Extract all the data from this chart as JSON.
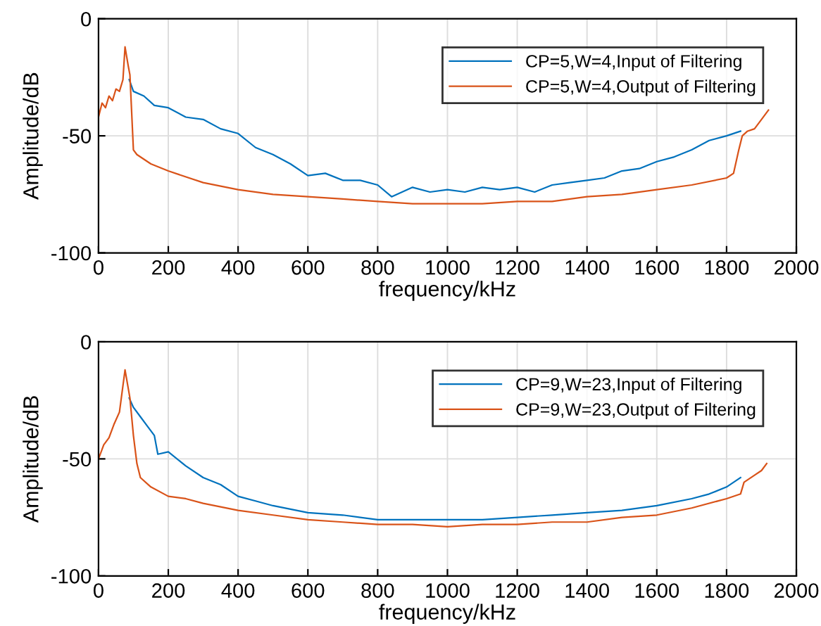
{
  "chart_data": [
    {
      "type": "line",
      "xlabel": "frequency/kHz",
      "ylabel": "Amplitude/dB",
      "xlim": [
        0,
        2000
      ],
      "ylim": [
        -100,
        0
      ],
      "xticks": [
        0,
        200,
        400,
        600,
        800,
        1000,
        1200,
        1400,
        1600,
        1800,
        2000
      ],
      "yticks": [
        -100,
        -50,
        0
      ],
      "grid": true,
      "legend": "top right",
      "line_style": "solid",
      "series": [
        {
          "name": "CP=5,W=4,Input of Filtering",
          "color": "#0072bd",
          "x": [
            88,
            100,
            130,
            160,
            200,
            250,
            300,
            350,
            400,
            450,
            500,
            550,
            600,
            650,
            700,
            750,
            800,
            840,
            900,
            950,
            1000,
            1050,
            1100,
            1150,
            1200,
            1250,
            1300,
            1350,
            1400,
            1450,
            1500,
            1550,
            1600,
            1650,
            1700,
            1750,
            1800,
            1840
          ],
          "values": [
            -26,
            -31,
            -33,
            -37,
            -38,
            -42,
            -43,
            -47,
            -49,
            -55,
            -58,
            -62,
            -67,
            -66,
            -69,
            -69,
            -71,
            -76,
            -72,
            -74,
            -73,
            -74,
            -72,
            -73,
            -72,
            -74,
            -71,
            -70,
            -69,
            -68,
            -65,
            -64,
            -61,
            -59,
            -56,
            -52,
            -50,
            -48
          ]
        },
        {
          "name": "CP=5,W=4,Output of Filtering",
          "color": "#d95319",
          "x": [
            0,
            10,
            20,
            30,
            40,
            50,
            60,
            70,
            76,
            85,
            90,
            100,
            110,
            150,
            200,
            300,
            400,
            500,
            600,
            700,
            800,
            900,
            1000,
            1100,
            1200,
            1300,
            1400,
            1500,
            1600,
            1700,
            1800,
            1820,
            1835,
            1845,
            1860,
            1880,
            1900,
            1920
          ],
          "values": [
            -42,
            -36,
            -38,
            -33,
            -35,
            -30,
            -31,
            -26,
            -12,
            -20,
            -24,
            -56,
            -58,
            -62,
            -65,
            -70,
            -73,
            -75,
            -76,
            -77,
            -78,
            -79,
            -79,
            -79,
            -78,
            -78,
            -76,
            -75,
            -73,
            -71,
            -68,
            -66,
            -56,
            -50,
            -48,
            -47,
            -43,
            -39
          ]
        }
      ]
    },
    {
      "type": "line",
      "xlabel": "frequency/kHz",
      "ylabel": "Amplitude/dB",
      "xlim": [
        0,
        2000
      ],
      "ylim": [
        -100,
        0
      ],
      "xticks": [
        0,
        200,
        400,
        600,
        800,
        1000,
        1200,
        1400,
        1600,
        1800,
        2000
      ],
      "yticks": [
        -100,
        -50,
        0
      ],
      "grid": true,
      "legend": "top right",
      "line_style": "solid",
      "series": [
        {
          "name": "CP=9,W=23,Input of Filtering",
          "color": "#0072bd",
          "x": [
            88,
            100,
            120,
            140,
            160,
            170,
            200,
            250,
            300,
            350,
            400,
            450,
            500,
            600,
            700,
            800,
            900,
            1000,
            1100,
            1200,
            1300,
            1400,
            1500,
            1600,
            1700,
            1750,
            1800,
            1840
          ],
          "values": [
            -24,
            -28,
            -32,
            -36,
            -40,
            -48,
            -47,
            -53,
            -58,
            -61,
            -66,
            -68,
            -70,
            -73,
            -74,
            -76,
            -76,
            -76,
            -76,
            -75,
            -74,
            -73,
            -72,
            -70,
            -67,
            -65,
            -62,
            -58
          ]
        },
        {
          "name": "CP=9,W=23,Output of Filtering",
          "color": "#d95319",
          "x": [
            0,
            15,
            30,
            45,
            60,
            76,
            90,
            100,
            110,
            120,
            150,
            200,
            250,
            300,
            400,
            500,
            600,
            700,
            800,
            900,
            1000,
            1100,
            1200,
            1300,
            1400,
            1500,
            1600,
            1700,
            1800,
            1840,
            1850,
            1880,
            1900,
            1915
          ],
          "values": [
            -50,
            -44,
            -41,
            -35,
            -30,
            -12,
            -24,
            -40,
            -52,
            -58,
            -62,
            -66,
            -67,
            -69,
            -72,
            -74,
            -76,
            -77,
            -78,
            -78,
            -79,
            -78,
            -78,
            -77,
            -77,
            -75,
            -74,
            -71,
            -67,
            -65,
            -60,
            -57,
            -55,
            -52
          ]
        }
      ]
    }
  ]
}
